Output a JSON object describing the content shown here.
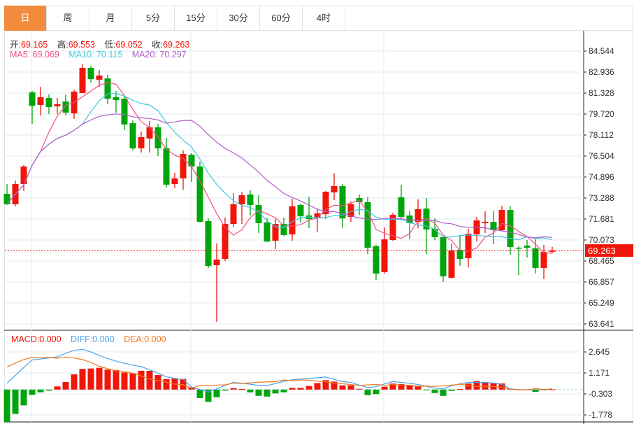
{
  "tabs": [
    {
      "label": "日",
      "active": true
    },
    {
      "label": "周"
    },
    {
      "label": "月"
    },
    {
      "label": "5分"
    },
    {
      "label": "15分"
    },
    {
      "label": "30分"
    },
    {
      "label": "60分"
    },
    {
      "label": "4时"
    }
  ],
  "ohlc_legend": {
    "open_label": "开:",
    "open": "69.165",
    "high_label": "高:",
    "high": "69.553",
    "low_label": "低:",
    "low": "69.052",
    "close_label": "收:",
    "close": "69.263"
  },
  "ma_legend": {
    "ma5": "MA5: 69.069",
    "ma10": "MA10: 70.115",
    "ma20": "MA20: 70.297"
  },
  "macd_legend": {
    "macd": "MACD:0.000",
    "diff": "DIFF:0.000",
    "dea": "DEA:0.000"
  },
  "colors": {
    "up": "#f0160a",
    "down": "#00a50c",
    "ma5": "#f0527a",
    "ma10": "#42c8e0",
    "ma20": "#b05cc8",
    "diff": "#4aa3f0",
    "dea": "#f07a1e",
    "tab_active": "#f28c3c"
  },
  "chart_data": [
    {
      "type": "candlestick",
      "title": "",
      "current_price": "69.263",
      "ylim": [
        63.641,
        84.544
      ],
      "yticks": [
        "84.544",
        "82.936",
        "81.328",
        "79.720",
        "78.112",
        "76.504",
        "74.896",
        "73.288",
        "71.681",
        "70.073",
        "68.465",
        "66.857",
        "65.249",
        "63.641"
      ],
      "candles": [
        [
          73.61,
          72.81,
          74.36,
          72.75
        ],
        [
          72.81,
          74.36,
          74.63,
          72.65
        ],
        [
          74.36,
          75.7,
          75.81,
          73.82
        ],
        [
          81.38,
          80.36,
          81.49,
          78.97
        ],
        [
          80.42,
          81.01,
          81.81,
          79.61
        ],
        [
          80.95,
          80.26,
          81.22,
          79.72
        ],
        [
          80.31,
          80.47,
          80.95,
          79.72
        ],
        [
          80.68,
          79.83,
          81.22,
          79.61
        ],
        [
          79.77,
          81.44,
          81.6,
          79.35
        ],
        [
          81.33,
          83.26,
          83.53,
          81.33
        ],
        [
          83.26,
          82.4,
          83.42,
          82.13
        ],
        [
          82.35,
          82.67,
          83.1,
          81.81
        ],
        [
          82.45,
          80.9,
          82.72,
          80.47
        ],
        [
          81.01,
          80.79,
          81.49,
          79.83
        ],
        [
          80.9,
          78.92,
          81.11,
          78.49
        ],
        [
          79.02,
          77.09,
          79.24,
          76.93
        ],
        [
          77.09,
          77.95,
          78.38,
          76.77
        ],
        [
          77.84,
          78.7,
          79.18,
          76.77
        ],
        [
          78.7,
          77.09,
          78.97,
          76.5
        ],
        [
          77.09,
          74.31,
          77.9,
          74.09
        ],
        [
          74.36,
          74.79,
          75.22,
          74.04
        ],
        [
          74.79,
          76.66,
          76.93,
          73.93
        ],
        [
          76.61,
          75.7,
          76.72,
          74.52
        ],
        [
          75.7,
          71.46,
          76.08,
          71.41
        ],
        [
          71.52,
          68.09,
          71.73,
          67.93
        ],
        [
          68.14,
          68.57,
          69.8,
          63.8
        ],
        [
          68.62,
          71.3,
          71.79,
          68.46
        ],
        [
          71.3,
          72.81,
          73.66,
          71.04
        ],
        [
          72.81,
          73.5,
          73.77,
          71.3
        ],
        [
          73.56,
          72.75,
          73.88,
          71.95
        ],
        [
          72.75,
          71.36,
          73.5,
          70.61
        ],
        [
          71.41,
          69.95,
          71.73,
          69.91
        ],
        [
          70.01,
          71.3,
          71.68,
          69.37
        ],
        [
          71.3,
          70.45,
          71.79,
          70.39
        ],
        [
          70.5,
          72.65,
          73.23,
          70.01
        ],
        [
          72.75,
          71.89,
          72.86,
          71.41
        ],
        [
          71.95,
          71.68,
          73.39,
          70.98
        ],
        [
          71.79,
          72.11,
          72.48,
          70.66
        ],
        [
          72.05,
          73.77,
          73.82,
          71.68
        ],
        [
          73.72,
          74.2,
          75.18,
          73.13
        ],
        [
          74.2,
          71.73,
          74.36,
          70.98
        ],
        [
          71.84,
          72.81,
          73.02,
          71.46
        ],
        [
          73.29,
          72.97,
          73.56,
          72.0
        ],
        [
          72.97,
          69.48,
          73.34,
          69.0
        ],
        [
          69.59,
          67.5,
          69.7,
          67.02
        ],
        [
          67.61,
          70.12,
          71.04,
          67.5
        ],
        [
          70.07,
          72.0,
          72.16,
          70.01
        ],
        [
          73.34,
          71.84,
          74.31,
          71.73
        ],
        [
          71.95,
          71.36,
          72.32,
          70.12
        ],
        [
          71.46,
          72.43,
          73.18,
          70.98
        ],
        [
          72.48,
          70.88,
          73.29,
          69.0
        ],
        [
          70.93,
          70.29,
          71.73,
          70.07
        ],
        [
          70.29,
          67.29,
          70.29,
          66.86
        ],
        [
          67.18,
          69.27,
          69.8,
          67.12
        ],
        [
          69.32,
          68.62,
          70.45,
          68.09
        ],
        [
          68.68,
          70.55,
          70.93,
          67.98
        ],
        [
          70.5,
          71.57,
          71.84,
          69.96
        ],
        [
          71.36,
          71.46,
          72.27,
          70.61
        ],
        [
          71.46,
          70.82,
          72.32,
          69.75
        ],
        [
          70.82,
          72.38,
          72.7,
          70.77
        ],
        [
          72.38,
          69.54,
          72.65,
          68.95
        ],
        [
          69.48,
          69.43,
          69.59,
          67.39
        ],
        [
          69.64,
          69.48,
          70.07,
          68.73
        ],
        [
          69.43,
          67.93,
          70.12,
          67.5
        ],
        [
          67.93,
          69.16,
          69.7,
          67.07
        ],
        [
          69.165,
          69.263,
          69.553,
          69.052
        ]
      ],
      "candle_fields": [
        "open",
        "close",
        "high",
        "low"
      ],
      "series": [
        {
          "name": "MA5",
          "period": 5
        },
        {
          "name": "MA10",
          "period": 10
        },
        {
          "name": "MA20",
          "period": 20
        }
      ]
    },
    {
      "type": "bar+line",
      "title": "MACD",
      "ylim": [
        -2.3,
        3.6
      ],
      "yticks": [
        "2.645",
        "1.171",
        "-0.303",
        "-1.778"
      ],
      "macd": [
        -2.3,
        -1.71,
        -1.11,
        -0.37,
        -0.19,
        -0.07,
        0.22,
        0.53,
        1.07,
        1.45,
        1.48,
        1.53,
        1.4,
        1.37,
        1.2,
        1.15,
        1.32,
        1.32,
        1.02,
        0.74,
        0.79,
        0.74,
        0.17,
        -0.6,
        -0.86,
        -0.54,
        -0.07,
        0.09,
        0.04,
        -0.19,
        -0.44,
        -0.49,
        -0.27,
        -0.19,
        0.12,
        0.12,
        0.25,
        0.46,
        0.66,
        0.56,
        0.29,
        0.3,
        0.05,
        -0.39,
        -0.32,
        0.2,
        0.42,
        0.38,
        0.33,
        0.25,
        -0.04,
        -0.24,
        -0.44,
        -0.09,
        0.04,
        0.42,
        0.58,
        0.53,
        0.47,
        0.43,
        0.05,
        0.01,
        0.0,
        -0.16,
        -0.02,
        0.01
      ],
      "diff": [
        0.45,
        1.0,
        1.55,
        2.09,
        2.15,
        2.22,
        2.3,
        2.55,
        2.75,
        2.83,
        2.64,
        2.4,
        2.17,
        2.0,
        1.85,
        1.72,
        1.61,
        1.4,
        1.15,
        0.9,
        0.78,
        0.72,
        0.17,
        0.0,
        -0.17,
        0.05,
        0.3,
        0.5,
        0.45,
        0.38,
        0.29,
        0.29,
        0.42,
        0.58,
        0.69,
        0.74,
        0.78,
        0.83,
        0.88,
        0.72,
        0.56,
        0.5,
        0.32,
        0.14,
        0.2,
        0.4,
        0.56,
        0.5,
        0.44,
        0.36,
        0.22,
        0.1,
        0.05,
        0.27,
        0.4,
        0.5,
        0.5,
        0.5,
        0.45,
        0.37,
        0.05,
        0.0,
        -0.02,
        -0.02,
        0.0,
        0.05
      ]
    }
  ]
}
